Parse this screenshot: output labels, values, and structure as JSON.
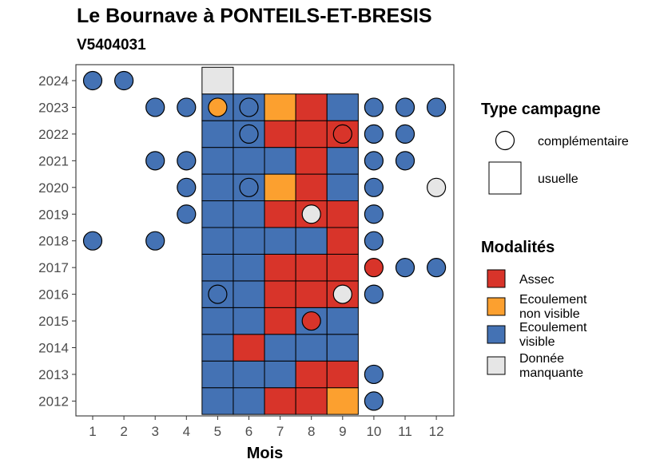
{
  "title": "Le Bournave à PONTEILS-ET-BRESIS",
  "subtitle": "V5404031",
  "colors": {
    "Assec": "#d8342a",
    "Ecoulement non visible": "#fca02f",
    "Ecoulement visible": "#4472b4",
    "Donnée manquante": "#e6e6e6"
  },
  "legend": {
    "type_title": "Type campagne",
    "type_items": [
      {
        "label": "complémentaire",
        "shape": "circle"
      },
      {
        "label": "usuelle",
        "shape": "square"
      }
    ],
    "modalites_title": "Modalités",
    "modalites_items": [
      {
        "key": "Assec",
        "lines": [
          "Assec"
        ]
      },
      {
        "key": "Ecoulement non visible",
        "lines": [
          "Ecoulement",
          "non visible"
        ]
      },
      {
        "key": "Ecoulement visible",
        "lines": [
          "Ecoulement",
          "visible"
        ]
      },
      {
        "key": "Donnée manquante",
        "lines": [
          "Donnée",
          "manquante"
        ]
      }
    ]
  },
  "chart_data": {
    "type": "heatmap",
    "xlabel": "Mois",
    "ylabel": "",
    "x_ticks": [
      1,
      2,
      3,
      4,
      5,
      6,
      7,
      8,
      9,
      10,
      11,
      12
    ],
    "y_ticks": [
      2012,
      2013,
      2014,
      2015,
      2016,
      2017,
      2018,
      2019,
      2020,
      2021,
      2022,
      2023,
      2024
    ],
    "usuelle": [
      {
        "year": 2012,
        "months": [
          "Ecoulement visible",
          "Ecoulement visible",
          "Assec",
          "Assec",
          "Ecoulement non visible"
        ]
      },
      {
        "year": 2013,
        "months": [
          "Ecoulement visible",
          "Ecoulement visible",
          "Ecoulement visible",
          "Assec",
          "Assec"
        ]
      },
      {
        "year": 2014,
        "months": [
          "Ecoulement visible",
          "Assec",
          "Ecoulement visible",
          "Ecoulement visible",
          "Ecoulement visible"
        ]
      },
      {
        "year": 2015,
        "months": [
          "Ecoulement visible",
          "Ecoulement visible",
          "Assec",
          "Ecoulement visible",
          "Ecoulement visible"
        ]
      },
      {
        "year": 2016,
        "months": [
          "Ecoulement visible",
          "Ecoulement visible",
          "Assec",
          "Assec",
          "Assec"
        ]
      },
      {
        "year": 2017,
        "months": [
          "Ecoulement visible",
          "Ecoulement visible",
          "Assec",
          "Assec",
          "Assec"
        ]
      },
      {
        "year": 2018,
        "months": [
          "Ecoulement visible",
          "Ecoulement visible",
          "Ecoulement visible",
          "Ecoulement visible",
          "Assec"
        ]
      },
      {
        "year": 2019,
        "months": [
          "Ecoulement visible",
          "Ecoulement visible",
          "Assec",
          "Assec",
          "Assec"
        ]
      },
      {
        "year": 2020,
        "months": [
          "Ecoulement visible",
          "Ecoulement visible",
          "Ecoulement non visible",
          "Assec",
          "Ecoulement visible"
        ]
      },
      {
        "year": 2021,
        "months": [
          "Ecoulement visible",
          "Ecoulement visible",
          "Ecoulement visible",
          "Assec",
          "Ecoulement visible"
        ]
      },
      {
        "year": 2022,
        "months": [
          "Ecoulement visible",
          "Ecoulement visible",
          "Assec",
          "Assec",
          "Assec"
        ]
      },
      {
        "year": 2023,
        "months": [
          "Ecoulement visible",
          "Ecoulement visible",
          "Ecoulement non visible",
          "Assec",
          "Ecoulement visible"
        ]
      },
      {
        "year": 2024,
        "months": [
          "Donnée manquante",
          null,
          null,
          null,
          null
        ]
      }
    ],
    "usuelle_first_month": 5,
    "complementaire": [
      {
        "year": 2024,
        "month": 1,
        "value": "Ecoulement visible"
      },
      {
        "year": 2024,
        "month": 2,
        "value": "Ecoulement visible"
      },
      {
        "year": 2023,
        "month": 3,
        "value": "Ecoulement visible"
      },
      {
        "year": 2023,
        "month": 4,
        "value": "Ecoulement visible"
      },
      {
        "year": 2023,
        "month": 5,
        "value": "Ecoulement non visible"
      },
      {
        "year": 2023,
        "month": 6,
        "value": "Ecoulement visible"
      },
      {
        "year": 2023,
        "month": 10,
        "value": "Ecoulement visible"
      },
      {
        "year": 2023,
        "month": 11,
        "value": "Ecoulement visible"
      },
      {
        "year": 2023,
        "month": 12,
        "value": "Ecoulement visible"
      },
      {
        "year": 2022,
        "month": 6,
        "value": "Ecoulement visible"
      },
      {
        "year": 2022,
        "month": 9,
        "value": "Assec"
      },
      {
        "year": 2022,
        "month": 10,
        "value": "Ecoulement visible"
      },
      {
        "year": 2022,
        "month": 11,
        "value": "Ecoulement visible"
      },
      {
        "year": 2021,
        "month": 3,
        "value": "Ecoulement visible"
      },
      {
        "year": 2021,
        "month": 4,
        "value": "Ecoulement visible"
      },
      {
        "year": 2021,
        "month": 10,
        "value": "Ecoulement visible"
      },
      {
        "year": 2021,
        "month": 11,
        "value": "Ecoulement visible"
      },
      {
        "year": 2020,
        "month": 4,
        "value": "Ecoulement visible"
      },
      {
        "year": 2020,
        "month": 6,
        "value": "Ecoulement visible"
      },
      {
        "year": 2020,
        "month": 10,
        "value": "Ecoulement visible"
      },
      {
        "year": 2020,
        "month": 12,
        "value": "Donnée manquante"
      },
      {
        "year": 2019,
        "month": 4,
        "value": "Ecoulement visible"
      },
      {
        "year": 2019,
        "month": 8,
        "value": "Donnée manquante"
      },
      {
        "year": 2019,
        "month": 10,
        "value": "Ecoulement visible"
      },
      {
        "year": 2018,
        "month": 1,
        "value": "Ecoulement visible"
      },
      {
        "year": 2018,
        "month": 3,
        "value": "Ecoulement visible"
      },
      {
        "year": 2018,
        "month": 10,
        "value": "Ecoulement visible"
      },
      {
        "year": 2017,
        "month": 10,
        "value": "Assec"
      },
      {
        "year": 2017,
        "month": 11,
        "value": "Ecoulement visible"
      },
      {
        "year": 2017,
        "month": 12,
        "value": "Ecoulement visible"
      },
      {
        "year": 2016,
        "month": 5,
        "value": "Ecoulement visible"
      },
      {
        "year": 2016,
        "month": 9,
        "value": "Donnée manquante"
      },
      {
        "year": 2016,
        "month": 10,
        "value": "Ecoulement visible"
      },
      {
        "year": 2015,
        "month": 8,
        "value": "Assec"
      },
      {
        "year": 2013,
        "month": 10,
        "value": "Ecoulement visible"
      },
      {
        "year": 2012,
        "month": 10,
        "value": "Ecoulement visible"
      }
    ]
  }
}
